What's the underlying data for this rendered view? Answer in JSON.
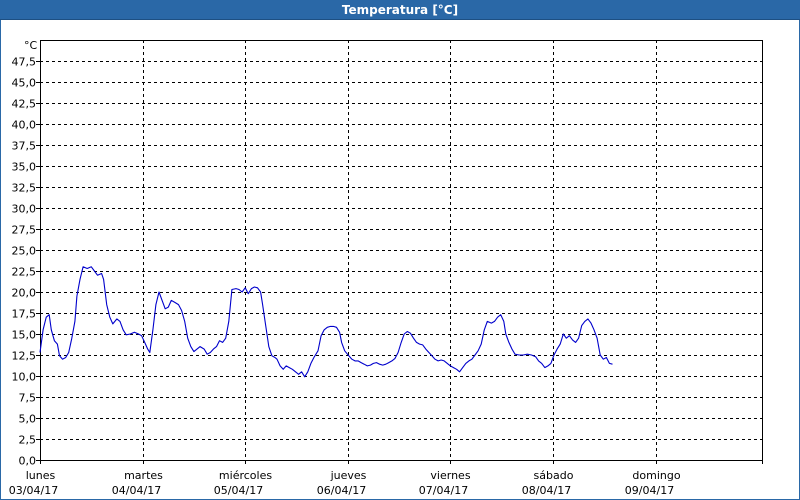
{
  "window": {
    "title": "Temperatura [°C]"
  },
  "chart_data": {
    "type": "line",
    "title": "Temperatura [°C]",
    "ylabel": "°C",
    "ylim": [
      0,
      50
    ],
    "yticks": [
      "0,0",
      "2,5",
      "5,0",
      "7,5",
      "10,0",
      "12,5",
      "15,0",
      "17,5",
      "20,0",
      "22,5",
      "25,0",
      "27,5",
      "30,0",
      "32,5",
      "35,0",
      "37,5",
      "40,0",
      "42,5",
      "45,0",
      "47,5"
    ],
    "xlim": [
      0,
      7.0
    ],
    "xticks": [
      {
        "day": "lunes",
        "date": "03/04/17"
      },
      {
        "day": "martes",
        "date": "04/04/17"
      },
      {
        "day": "miércoles",
        "date": "05/04/17"
      },
      {
        "day": "jueves",
        "date": "06/04/17"
      },
      {
        "day": "viernes",
        "date": "07/04/17"
      },
      {
        "day": "sábado",
        "date": "08/04/17"
      },
      {
        "day": "domingo",
        "date": "09/04/17"
      }
    ],
    "grid": true,
    "series": [
      {
        "color": "#0000cc",
        "points": [
          [
            0.0,
            12.8
          ],
          [
            0.03,
            15.5
          ],
          [
            0.06,
            17.0
          ],
          [
            0.09,
            17.3
          ],
          [
            0.11,
            15.5
          ],
          [
            0.14,
            14.2
          ],
          [
            0.17,
            13.8
          ],
          [
            0.19,
            12.4
          ],
          [
            0.22,
            12.0
          ],
          [
            0.25,
            12.2
          ],
          [
            0.28,
            12.8
          ],
          [
            0.31,
            14.5
          ],
          [
            0.34,
            16.5
          ],
          [
            0.36,
            19.5
          ],
          [
            0.39,
            21.5
          ],
          [
            0.42,
            23.0
          ],
          [
            0.46,
            22.8
          ],
          [
            0.5,
            23.0
          ],
          [
            0.53,
            22.5
          ],
          [
            0.56,
            22.0
          ],
          [
            0.6,
            22.2
          ],
          [
            0.62,
            21.5
          ],
          [
            0.65,
            18.5
          ],
          [
            0.68,
            17.0
          ],
          [
            0.71,
            16.2
          ],
          [
            0.75,
            16.8
          ],
          [
            0.78,
            16.5
          ],
          [
            0.81,
            15.5
          ],
          [
            0.84,
            14.9
          ],
          [
            0.88,
            15.0
          ],
          [
            0.92,
            15.2
          ],
          [
            0.96,
            15.0
          ],
          [
            0.99,
            14.8
          ],
          [
            1.02,
            14.0
          ],
          [
            1.05,
            13.2
          ],
          [
            1.07,
            12.8
          ],
          [
            1.1,
            15.5
          ],
          [
            1.13,
            18.5
          ],
          [
            1.16,
            20.0
          ],
          [
            1.19,
            19.0
          ],
          [
            1.22,
            18.0
          ],
          [
            1.25,
            18.2
          ],
          [
            1.28,
            19.0
          ],
          [
            1.31,
            18.8
          ],
          [
            1.35,
            18.5
          ],
          [
            1.38,
            17.8
          ],
          [
            1.41,
            16.5
          ],
          [
            1.44,
            14.5
          ],
          [
            1.47,
            13.5
          ],
          [
            1.5,
            12.9
          ],
          [
            1.53,
            13.2
          ],
          [
            1.56,
            13.5
          ],
          [
            1.6,
            13.2
          ],
          [
            1.63,
            12.6
          ],
          [
            1.66,
            12.8
          ],
          [
            1.69,
            13.2
          ],
          [
            1.72,
            13.5
          ],
          [
            1.75,
            14.2
          ],
          [
            1.78,
            14.0
          ],
          [
            1.81,
            14.5
          ],
          [
            1.84,
            16.5
          ],
          [
            1.87,
            20.3
          ],
          [
            1.91,
            20.4
          ],
          [
            1.94,
            20.3
          ],
          [
            1.97,
            20.0
          ],
          [
            2.0,
            20.5
          ],
          [
            2.03,
            19.8
          ],
          [
            2.06,
            20.4
          ],
          [
            2.09,
            20.6
          ],
          [
            2.12,
            20.5
          ],
          [
            2.15,
            20.0
          ],
          [
            2.17,
            18.5
          ],
          [
            2.2,
            16.0
          ],
          [
            2.23,
            13.5
          ],
          [
            2.26,
            12.4
          ],
          [
            2.29,
            12.2
          ],
          [
            2.31,
            12.0
          ],
          [
            2.34,
            11.2
          ],
          [
            2.37,
            10.8
          ],
          [
            2.4,
            11.2
          ],
          [
            2.43,
            11.0
          ],
          [
            2.46,
            10.8
          ],
          [
            2.49,
            10.5
          ],
          [
            2.52,
            10.2
          ],
          [
            2.55,
            10.5
          ],
          [
            2.58,
            9.9
          ],
          [
            2.61,
            10.5
          ],
          [
            2.64,
            11.5
          ],
          [
            2.67,
            12.2
          ],
          [
            2.71,
            13.0
          ],
          [
            2.74,
            14.8
          ],
          [
            2.77,
            15.5
          ],
          [
            2.8,
            15.8
          ],
          [
            2.83,
            15.9
          ],
          [
            2.86,
            15.9
          ],
          [
            2.89,
            15.8
          ],
          [
            2.92,
            15.2
          ],
          [
            2.94,
            14.0
          ],
          [
            2.97,
            13.0
          ],
          [
            3.01,
            12.4
          ],
          [
            3.04,
            12.0
          ],
          [
            3.07,
            11.8
          ],
          [
            3.1,
            11.8
          ],
          [
            3.13,
            11.6
          ],
          [
            3.16,
            11.4
          ],
          [
            3.19,
            11.2
          ],
          [
            3.22,
            11.3
          ],
          [
            3.25,
            11.5
          ],
          [
            3.28,
            11.6
          ],
          [
            3.31,
            11.4
          ],
          [
            3.34,
            11.3
          ],
          [
            3.37,
            11.4
          ],
          [
            3.4,
            11.6
          ],
          [
            3.43,
            11.8
          ],
          [
            3.46,
            12.1
          ],
          [
            3.49,
            12.8
          ],
          [
            3.52,
            14.0
          ],
          [
            3.55,
            15.0
          ],
          [
            3.58,
            15.3
          ],
          [
            3.61,
            15.1
          ],
          [
            3.64,
            14.5
          ],
          [
            3.67,
            14.0
          ],
          [
            3.7,
            13.8
          ],
          [
            3.73,
            13.7
          ],
          [
            3.76,
            13.2
          ],
          [
            3.79,
            12.8
          ],
          [
            3.82,
            12.4
          ],
          [
            3.85,
            12.0
          ],
          [
            3.88,
            11.8
          ],
          [
            3.91,
            11.9
          ],
          [
            3.94,
            11.8
          ],
          [
            3.97,
            11.5
          ],
          [
            4.0,
            11.2
          ],
          [
            4.03,
            11.0
          ],
          [
            4.06,
            10.8
          ],
          [
            4.09,
            10.5
          ],
          [
            4.12,
            11.0
          ],
          [
            4.15,
            11.5
          ],
          [
            4.18,
            11.8
          ],
          [
            4.21,
            12.0
          ],
          [
            4.24,
            12.5
          ],
          [
            4.27,
            13.0
          ],
          [
            4.3,
            13.8
          ],
          [
            4.33,
            15.5
          ],
          [
            4.36,
            16.5
          ],
          [
            4.4,
            16.3
          ],
          [
            4.43,
            16.5
          ],
          [
            4.46,
            17.0
          ],
          [
            4.49,
            17.3
          ],
          [
            4.52,
            16.5
          ],
          [
            4.54,
            15.0
          ],
          [
            4.57,
            14.0
          ],
          [
            4.6,
            13.2
          ],
          [
            4.63,
            12.6
          ],
          [
            4.67,
            12.5
          ],
          [
            4.71,
            12.5
          ],
          [
            4.75,
            12.6
          ],
          [
            4.79,
            12.5
          ],
          [
            4.83,
            12.3
          ],
          [
            4.86,
            11.8
          ],
          [
            4.89,
            11.5
          ],
          [
            4.92,
            11.0
          ],
          [
            4.95,
            11.2
          ],
          [
            4.98,
            11.5
          ],
          [
            5.01,
            12.5
          ],
          [
            5.04,
            13.2
          ],
          [
            5.07,
            13.8
          ],
          [
            5.1,
            15.0
          ],
          [
            5.13,
            14.5
          ],
          [
            5.16,
            14.8
          ],
          [
            5.19,
            14.3
          ],
          [
            5.22,
            14.0
          ],
          [
            5.25,
            14.5
          ],
          [
            5.28,
            16.0
          ],
          [
            5.31,
            16.5
          ],
          [
            5.34,
            16.8
          ],
          [
            5.37,
            16.3
          ],
          [
            5.4,
            15.5
          ],
          [
            5.43,
            14.5
          ],
          [
            5.46,
            12.5
          ],
          [
            5.49,
            12.0
          ],
          [
            5.52,
            12.2
          ],
          [
            5.55,
            11.5
          ],
          [
            5.58,
            11.4
          ]
        ]
      }
    ]
  }
}
